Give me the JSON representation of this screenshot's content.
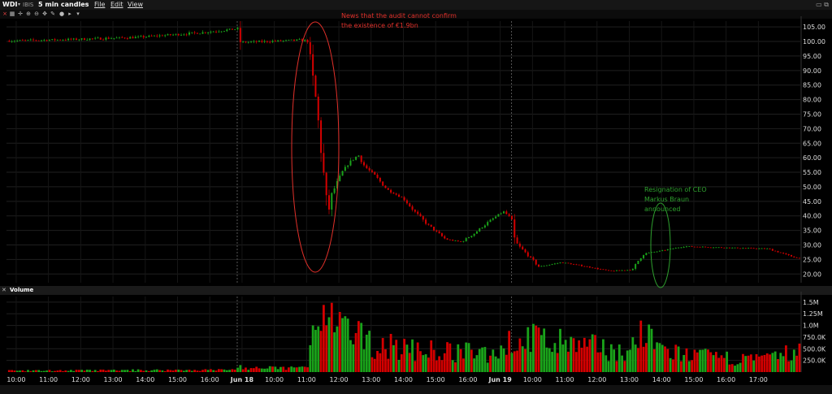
{
  "header": {
    "symbol": "WDI",
    "exchange": "IBIS",
    "interval": "5 min candles",
    "menu": [
      "File",
      "Edit",
      "View"
    ]
  },
  "volume_panel": {
    "title": "Volume"
  },
  "colors": {
    "up": "#1aa31a",
    "down": "#d40000",
    "annotation_red": "#e0302a",
    "annotation_green": "#2ea02e",
    "background": "#000000"
  },
  "toolbar_icons": [
    "chart-icon",
    "crosshair-icon",
    "zoom-in-icon",
    "zoom-out-icon",
    "pan-icon",
    "draw-icon",
    "dropdown-icon"
  ],
  "annotations": {
    "audit_news": [
      "News that the audit cannot confirm",
      "the existence of €1.9bn"
    ],
    "ceo_resignation": [
      "Resignation of CEO",
      "Markus Braun",
      "announced"
    ]
  },
  "chart_data": [
    {
      "type": "candlestick",
      "title": "WDI IBIS 5 min candles",
      "ylim": [
        17,
        107
      ],
      "y_ticks": [
        "105.00",
        "100.00",
        "95.00",
        "90.00",
        "85.00",
        "80.00",
        "75.00",
        "70.00",
        "65.00",
        "60.00",
        "55.00",
        "50.00",
        "45.00",
        "40.00",
        "35.00",
        "30.00",
        "25.00",
        "20.00"
      ],
      "y_tick_values": [
        105,
        100,
        95,
        90,
        85,
        80,
        75,
        70,
        65,
        60,
        55,
        50,
        45,
        40,
        35,
        30,
        25,
        20
      ],
      "x_ticks": [
        "10:00",
        "11:00",
        "12:00",
        "13:00",
        "14:00",
        "15:00",
        "16:00",
        "Jun 18",
        "10:00",
        "11:00",
        "12:00",
        "13:00",
        "14:00",
        "15:00",
        "16:00",
        "Jun 19",
        "10:00",
        "11:00",
        "12:00",
        "13:00",
        "14:00",
        "15:00",
        "16:00",
        "17:00"
      ],
      "x_tick_index": [
        0.3,
        1.3,
        2.3,
        3.3,
        4.3,
        5.3,
        6.3,
        7.3,
        8.3,
        9.3,
        10.3,
        11.3,
        12.3,
        13.3,
        14.3,
        15.3,
        16.3,
        17.3,
        18.3,
        19.3,
        20.3,
        21.3,
        22.3,
        23.3
      ],
      "session_breaks": [
        7.15,
        15.65
      ],
      "hours_domain": [
        0,
        24.6
      ],
      "close_path": [
        [
          0,
          100.2
        ],
        [
          2,
          100.7
        ],
        [
          4,
          101.4
        ],
        [
          6,
          103.0
        ],
        [
          7.2,
          104.4
        ],
        [
          7.25,
          99.7
        ],
        [
          8.5,
          100.2
        ],
        [
          9.2,
          100.5
        ],
        [
          9.35,
          100.0
        ],
        [
          9.45,
          90.0
        ],
        [
          9.6,
          79.0
        ],
        [
          9.72,
          66.0
        ],
        [
          9.85,
          52.0
        ],
        [
          9.95,
          40.0
        ],
        [
          10.1,
          48.0
        ],
        [
          10.4,
          55.0
        ],
        [
          10.6,
          58.0
        ],
        [
          10.9,
          61.0
        ],
        [
          11.1,
          57.0
        ],
        [
          11.4,
          54.0
        ],
        [
          11.8,
          49.0
        ],
        [
          12.3,
          46.0
        ],
        [
          12.6,
          42.0
        ],
        [
          13.0,
          37.5
        ],
        [
          13.6,
          32.0
        ],
        [
          14.1,
          31.0
        ],
        [
          14.5,
          34.0
        ],
        [
          15.0,
          38.5
        ],
        [
          15.4,
          41.5
        ],
        [
          15.65,
          39.0
        ],
        [
          15.75,
          31.0
        ],
        [
          16.2,
          26.0
        ],
        [
          16.5,
          22.5
        ],
        [
          17.2,
          24.0
        ],
        [
          18.0,
          22.5
        ],
        [
          18.7,
          21.0
        ],
        [
          19.4,
          21.5
        ],
        [
          19.6,
          25.0
        ],
        [
          19.75,
          27.0
        ],
        [
          20.3,
          28.0
        ],
        [
          21.0,
          29.5
        ],
        [
          22.5,
          29.0
        ],
        [
          23.6,
          28.7
        ],
        [
          24.2,
          26.5
        ],
        [
          24.5,
          25.5
        ]
      ],
      "annotations": [
        {
          "text": "News that the audit cannot confirm the existence of €1.9bn",
          "at_hours": 9.45
        },
        {
          "text": "Resignation of CEO Markus Braun announced",
          "at_hours": 19.6
        }
      ]
    },
    {
      "type": "bar",
      "title": "Volume",
      "ylim": [
        0,
        1620000
      ],
      "y_ticks": [
        "1.5M",
        "1.25M",
        "1.0M",
        "750.0K",
        "500.0K",
        "250.0K"
      ],
      "y_tick_values": [
        1500000,
        1250000,
        1000000,
        750000,
        500000,
        250000
      ],
      "volume_profile": [
        [
          0,
          30000
        ],
        [
          7.0,
          50000
        ],
        [
          7.2,
          150000
        ],
        [
          7.4,
          80000
        ],
        [
          9.3,
          100000
        ],
        [
          9.45,
          700000
        ],
        [
          9.8,
          1150000
        ],
        [
          10.5,
          900000
        ],
        [
          11.5,
          600000
        ],
        [
          13.0,
          480000
        ],
        [
          15.0,
          420000
        ],
        [
          15.6,
          650000
        ],
        [
          16.2,
          780000
        ],
        [
          17.5,
          600000
        ],
        [
          18.5,
          550000
        ],
        [
          19.3,
          420000
        ],
        [
          19.6,
          850000
        ],
        [
          20.5,
          450000
        ],
        [
          22.0,
          320000
        ],
        [
          23.5,
          280000
        ],
        [
          24.4,
          450000
        ]
      ]
    }
  ]
}
